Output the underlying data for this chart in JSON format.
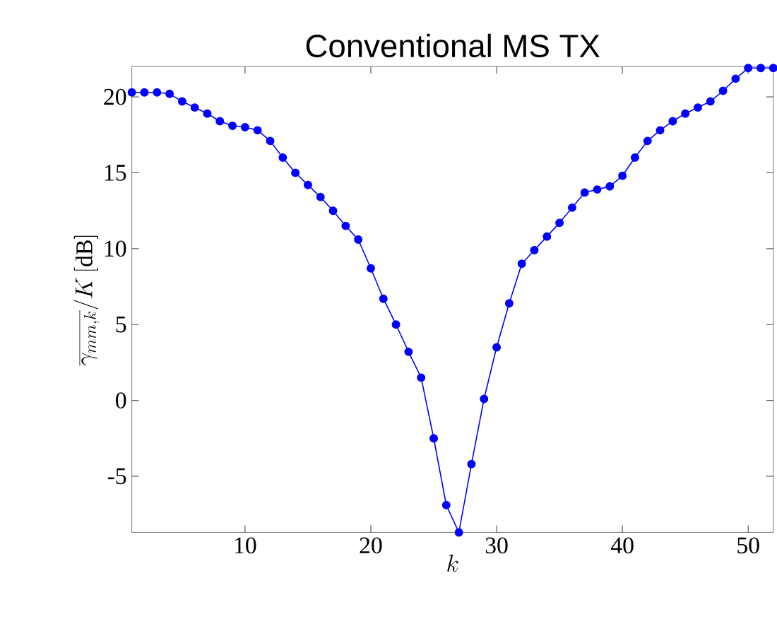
{
  "chart_data": {
    "type": "line",
    "title": "Conventional MS TX",
    "xlabel": "k",
    "ylabel": "\\overline{\\gamma_{mm,k}}/K\\,[\\mathrm{dB}]",
    "x": [
      1,
      2,
      3,
      4,
      5,
      6,
      7,
      8,
      9,
      10,
      11,
      12,
      13,
      14,
      15,
      16,
      17,
      18,
      19,
      20,
      21,
      22,
      23,
      24,
      25,
      26,
      27,
      28,
      29,
      30,
      31,
      32,
      33,
      34,
      35,
      36,
      37,
      38,
      39,
      40,
      41,
      42,
      43,
      44,
      45,
      46,
      47,
      48,
      49,
      50,
      51,
      52
    ],
    "series": [
      {
        "color": "#0000ff",
        "values": [
          20.3,
          20.3,
          20.3,
          20.2,
          19.7,
          19.3,
          18.9,
          18.4,
          18.1,
          18.0,
          17.8,
          17.1,
          16.0,
          15.0,
          14.2,
          13.4,
          12.5,
          11.5,
          10.6,
          8.7,
          6.7,
          5.0,
          3.2,
          1.5,
          -2.5,
          -6.9,
          -8.7,
          -4.2,
          0.1,
          3.5,
          6.4,
          9.0,
          9.9,
          10.8,
          11.7,
          12.7,
          13.7,
          13.9,
          14.1,
          14.8,
          16.0,
          17.1,
          17.8,
          18.4,
          18.9,
          19.3,
          19.7,
          20.4,
          21.2,
          21.9,
          21.9,
          21.9
        ]
      }
    ],
    "xlim": [
      1,
      52
    ],
    "ylim": [
      -8.7,
      22
    ],
    "xticks": [
      10,
      20,
      30,
      40,
      50
    ],
    "yticks": [
      -5,
      0,
      5,
      10,
      15,
      20
    ],
    "marker": "circle",
    "line_style": "solid"
  }
}
